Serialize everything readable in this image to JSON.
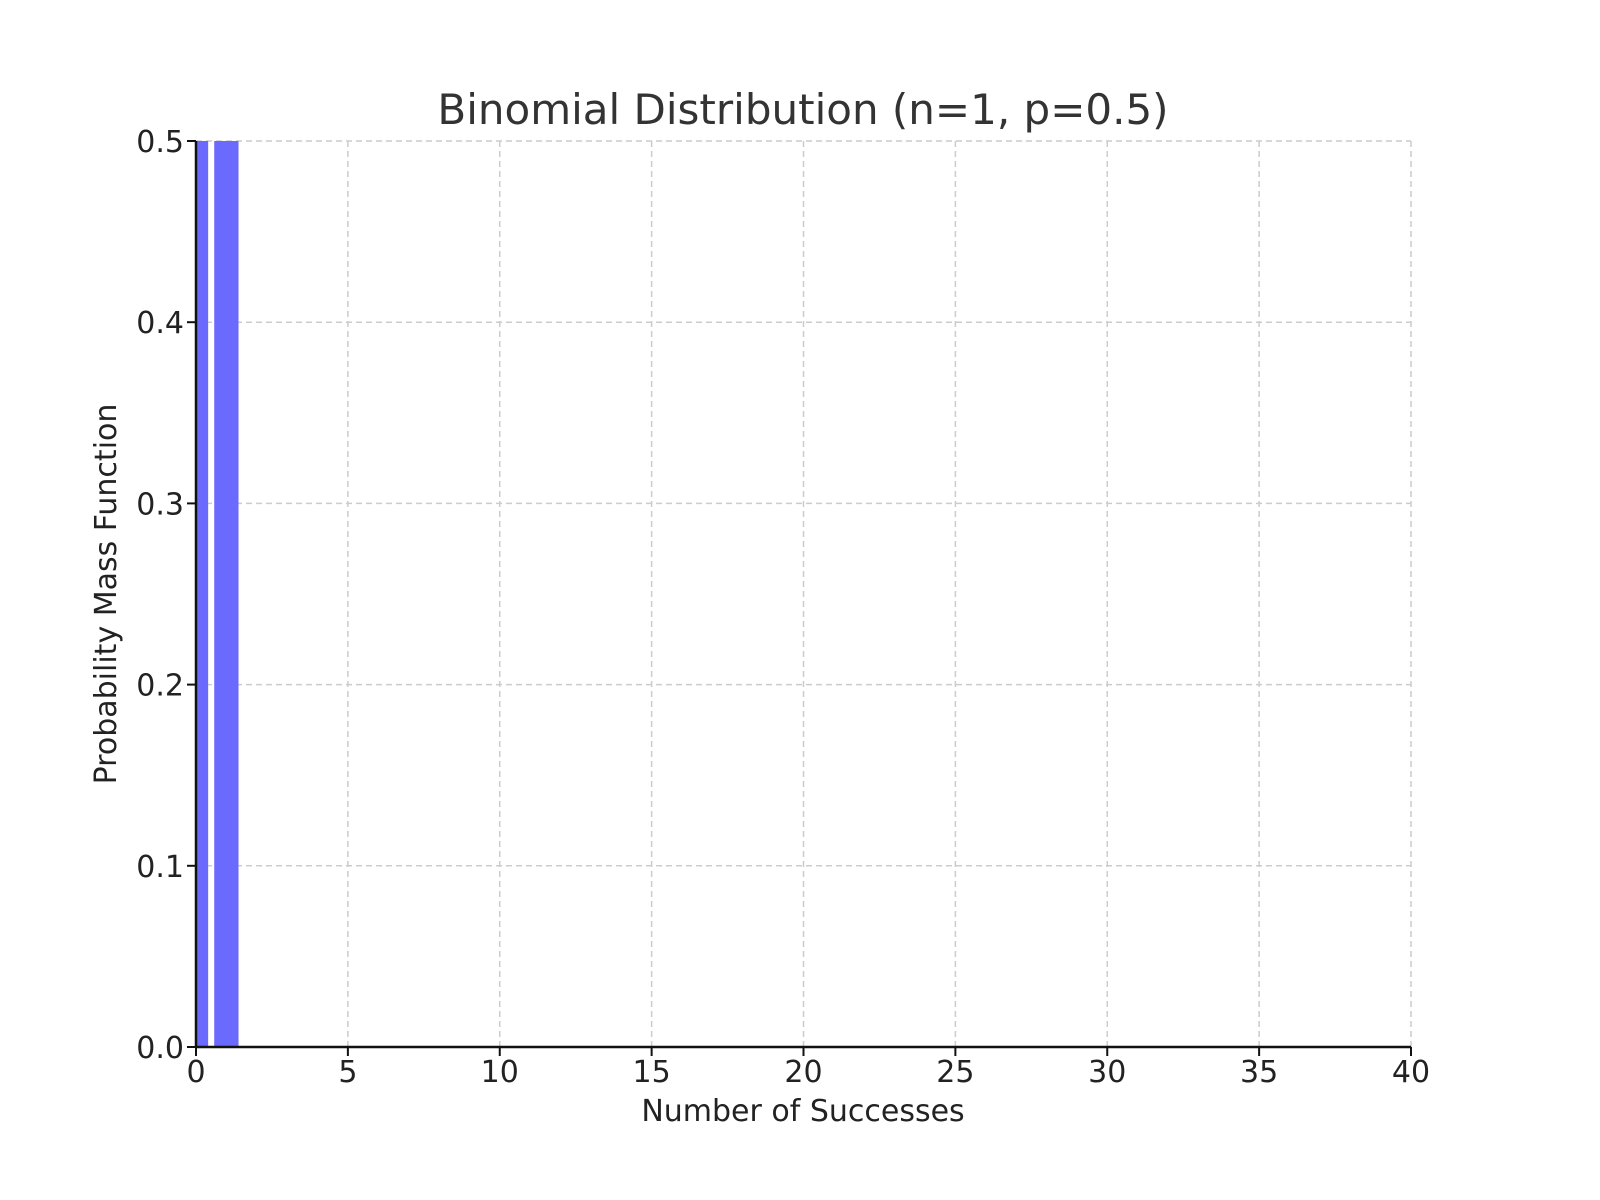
{
  "chart_data": {
    "type": "bar",
    "title": "Binomial Distribution (n=1, p=0.5)",
    "xlabel": "Number of Successes",
    "ylabel": "Probability Mass Function",
    "x": [
      0,
      1
    ],
    "values": [
      0.5,
      0.5
    ],
    "bar_width": 0.8,
    "xlim": [
      0,
      40
    ],
    "ylim": [
      0,
      0.5
    ],
    "xticks": [
      0,
      5,
      10,
      15,
      20,
      25,
      30,
      35,
      40
    ],
    "yticks": [
      0.0,
      0.1,
      0.2,
      0.3,
      0.4,
      0.5
    ],
    "ytick_labels": [
      "0.0",
      "0.1",
      "0.2",
      "0.3",
      "0.4",
      "0.5"
    ],
    "grid": true,
    "bar_color": "#6a6aff"
  }
}
